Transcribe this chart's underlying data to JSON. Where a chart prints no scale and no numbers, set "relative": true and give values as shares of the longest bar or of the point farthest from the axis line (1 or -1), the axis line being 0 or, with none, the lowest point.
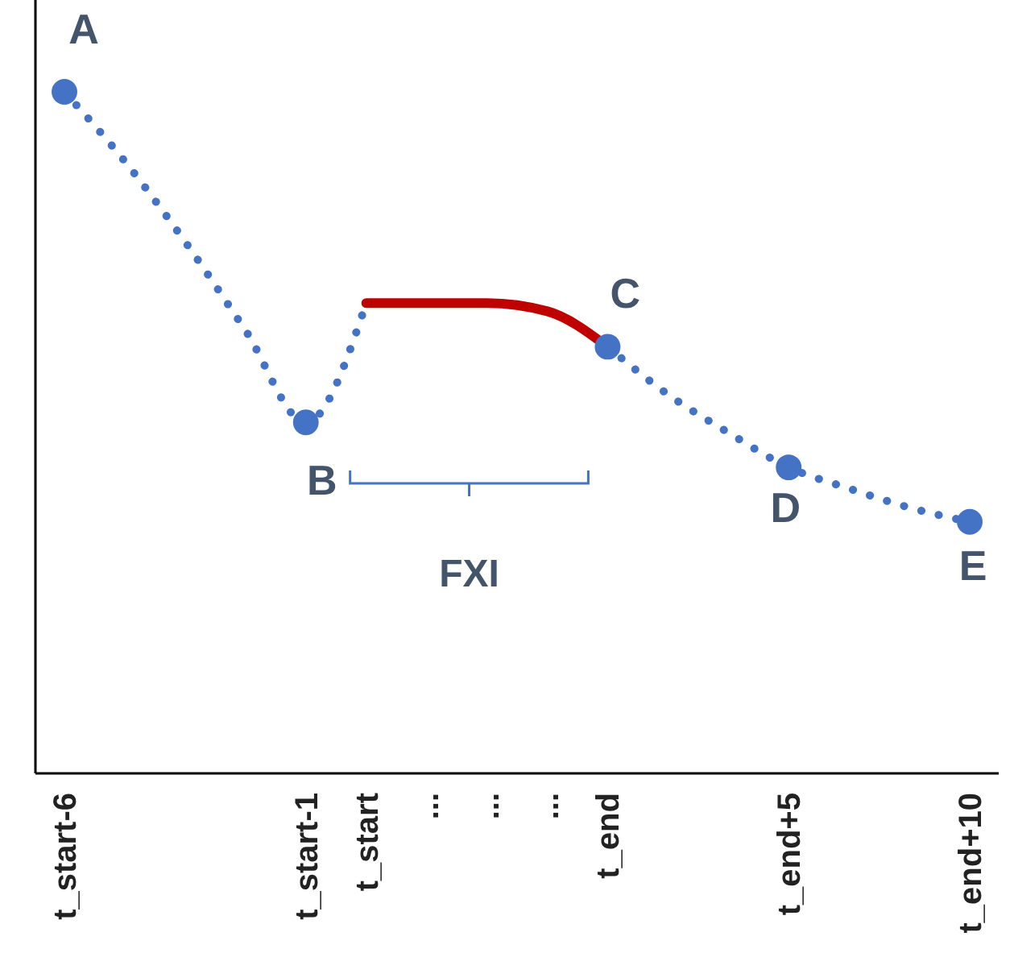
{
  "chart_data": {
    "type": "line",
    "relative": true,
    "tick_labels": "x",
    "categories": [
      "t_start-6",
      null,
      null,
      null,
      "t_start-1",
      "t_start",
      "...",
      "...",
      "...",
      "t_end",
      null,
      null,
      "t_end+5",
      null,
      null,
      "t_end+10"
    ],
    "series": [
      {
        "color": "#4472c4",
        "line_style": "dotted",
        "marker": "none",
        "values": [
          1,
          0.898,
          0.78,
          0.65,
          0.515,
          0.69,
          null,
          null,
          null,
          0.626,
          0.556,
          0.5,
          0.449,
          0.418,
          0.39,
          0.369
        ]
      },
      {
        "color": "#c00000",
        "line_style": "solid",
        "marker": "none",
        "values": [
          null,
          null,
          null,
          null,
          null,
          0.69,
          0.69,
          0.69,
          0.678,
          0.626,
          null,
          null,
          null,
          null,
          null,
          null
        ]
      },
      {
        "type": "scatter",
        "color": "#4472c4",
        "marker": "circle",
        "values": [
          1,
          null,
          null,
          null,
          0.515,
          null,
          null,
          null,
          null,
          0.626,
          null,
          null,
          0.449,
          null,
          null,
          0.369
        ]
      }
    ],
    "annotations": [
      {
        "text": "A",
        "x": "t_start-6",
        "y": 1
      },
      {
        "text": "B",
        "x": "t_start-1",
        "y": 0.515
      },
      {
        "text": "C",
        "x": "t_end",
        "y": 0.626
      },
      {
        "text": "D",
        "x": "t_end+5",
        "y": 0.449
      },
      {
        "text": "E",
        "x": "t_end+10",
        "y": 0.369
      },
      "FXI"
    ]
  }
}
